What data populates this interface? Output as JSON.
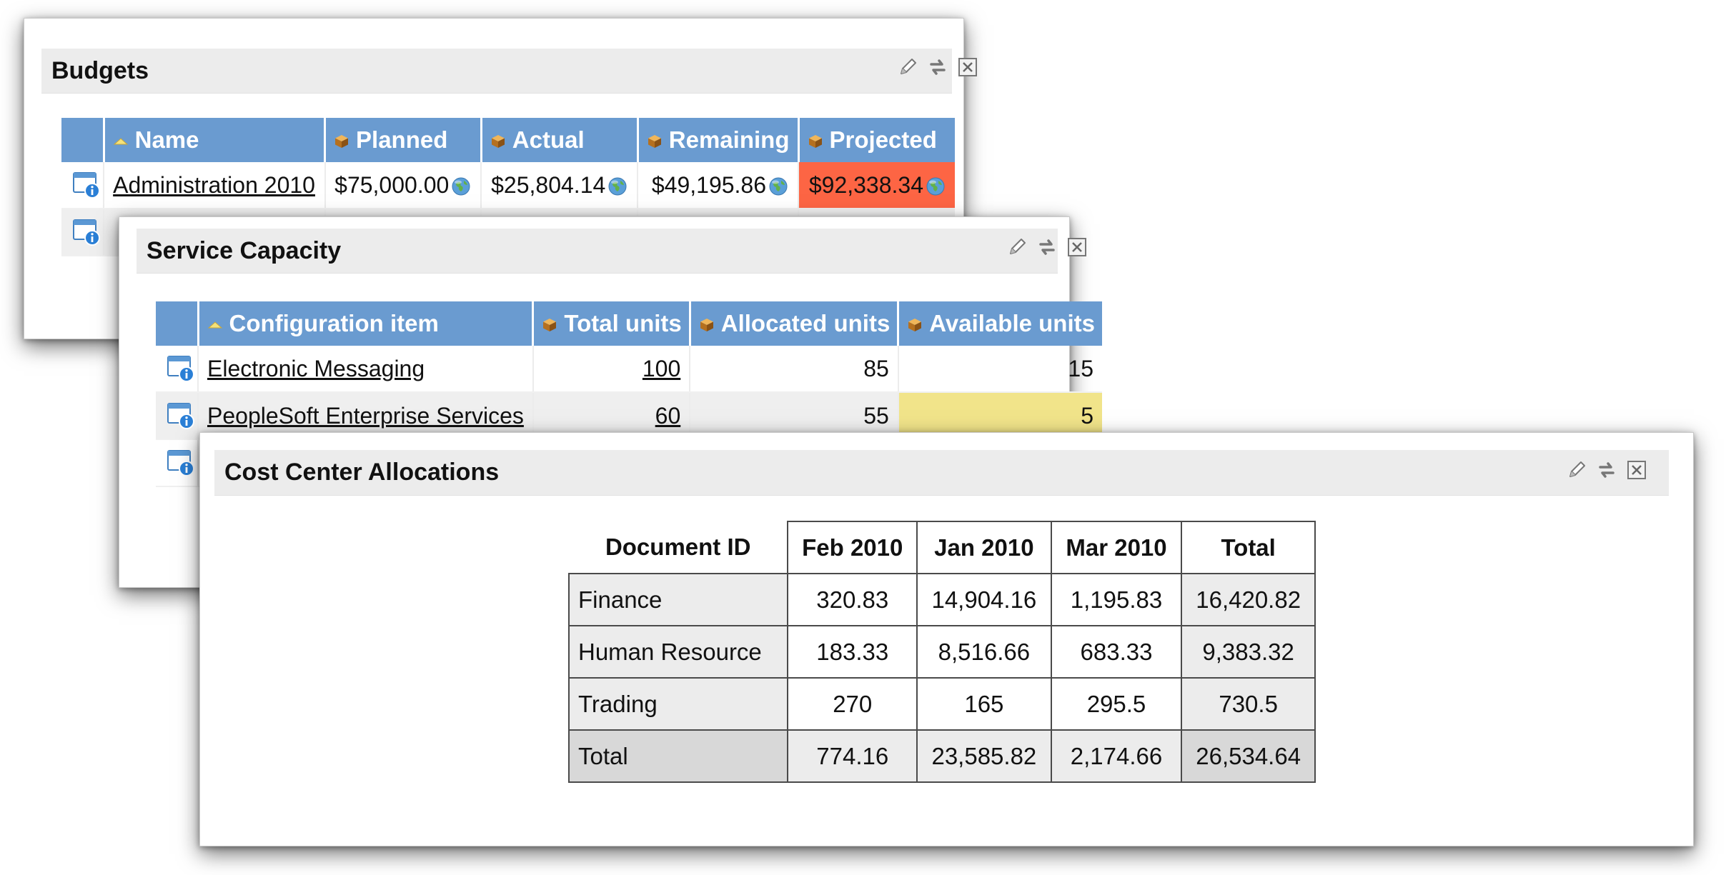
{
  "budgets": {
    "title": "Budgets",
    "columns": [
      "Name",
      "Planned",
      "Actual",
      "Remaining",
      "Projected"
    ],
    "rows": [
      {
        "name": "Administration 2010",
        "planned": "$75,000.00",
        "actual": "$25,804.14",
        "remaining": "$49,195.86",
        "projected": "$92,338.34"
      }
    ],
    "projected_alert_color": "#fd6544"
  },
  "service_capacity": {
    "title": "Service Capacity",
    "columns": [
      "Configuration item",
      "Total units",
      "Allocated units",
      "Available units"
    ],
    "rows": [
      {
        "item": "Electronic Messaging",
        "total": "100",
        "allocated": "85",
        "available": "15"
      },
      {
        "item": "PeopleSoft Enterprise Services",
        "total": "60",
        "allocated": "55",
        "available": "5"
      }
    ],
    "warning_color": "#f1e48a"
  },
  "cost_center": {
    "title": "Cost Center Allocations",
    "corner_label": "Document ID",
    "columns": [
      "Feb 2010",
      "Jan 2010",
      "Mar 2010",
      "Total"
    ],
    "rows": [
      {
        "label": "Finance",
        "values": [
          "320.83",
          "14,904.16",
          "1,195.83",
          "16,420.82"
        ]
      },
      {
        "label": "Human Resource",
        "values": [
          "183.33",
          "8,516.66",
          "683.33",
          "9,383.32"
        ]
      },
      {
        "label": "Trading",
        "values": [
          "270",
          "165",
          "295.5",
          "730.5"
        ]
      },
      {
        "label": "Total",
        "values": [
          "774.16",
          "23,585.82",
          "2,174.66",
          "26,534.64"
        ]
      }
    ]
  },
  "icons": {
    "edit": "pencil-icon",
    "refresh": "refresh-icon",
    "close": "close-icon",
    "sort_ascending": "sort-ascending-icon",
    "column": "cube-icon",
    "row_detail": "window-info-icon",
    "currency": "globe-icon"
  },
  "colors": {
    "header_blue": "#6a9bd0",
    "panel_header_gray": "#ececec"
  }
}
